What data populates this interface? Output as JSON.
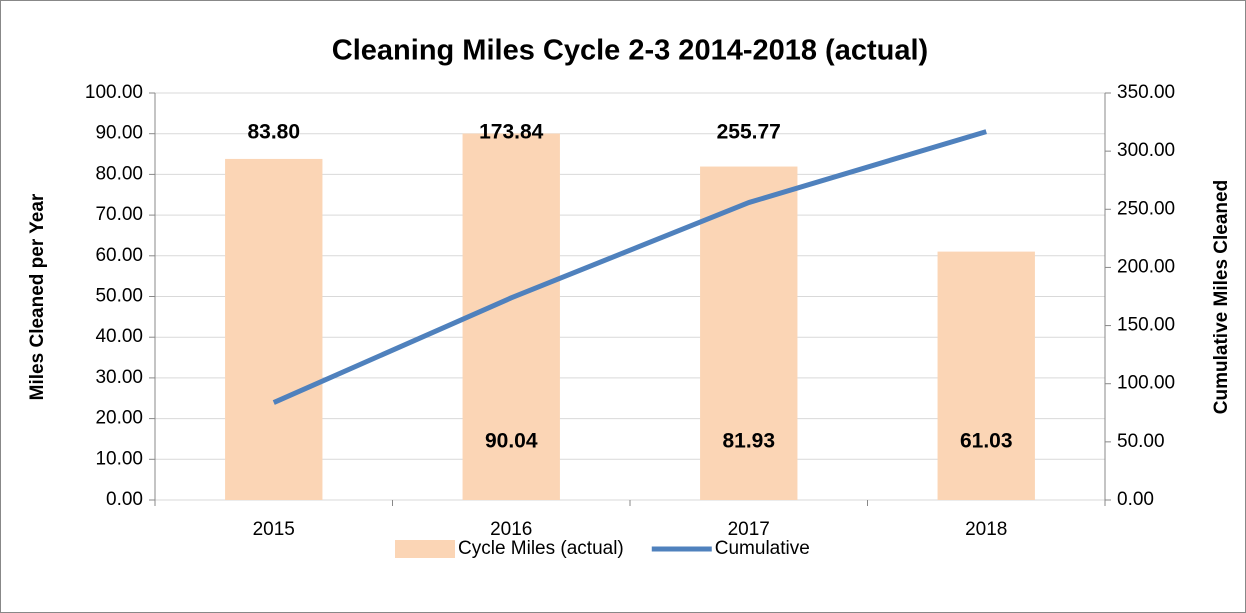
{
  "chart_data": {
    "type": "bar_line",
    "title": "Cleaning Miles Cycle 2-3 2014-2018 (actual)",
    "y_label": "Miles Cleaned per Year",
    "y2_label": "Cumulative Miles Cleaned",
    "categories": [
      "2015",
      "2016",
      "2017",
      "2018"
    ],
    "series": [
      {
        "name": "Cycle Miles (actual)",
        "type": "bar",
        "color": "#fbd5b5",
        "values": [
          83.8,
          90.04,
          81.93,
          61.03
        ],
        "value_labels": [
          null,
          "90.04",
          "81.93",
          "61.03"
        ]
      },
      {
        "name": "Cumulative",
        "type": "line",
        "axis": "y2",
        "color": "#4f81bd",
        "values": [
          83.8,
          173.84,
          255.77,
          316.8
        ],
        "value_labels": [
          "83.80",
          "173.84",
          "255.77",
          null
        ]
      }
    ],
    "ylim": [
      0,
      100
    ],
    "yticks": [
      {
        "value": 0,
        "label": "0.00"
      },
      {
        "value": 10,
        "label": "10.00"
      },
      {
        "value": 20,
        "label": "20.00"
      },
      {
        "value": 30,
        "label": "30.00"
      },
      {
        "value": 40,
        "label": "40.00"
      },
      {
        "value": 50,
        "label": "50.00"
      },
      {
        "value": 60,
        "label": "60.00"
      },
      {
        "value": 70,
        "label": "70.00"
      },
      {
        "value": 80,
        "label": "80.00"
      },
      {
        "value": 90,
        "label": "90.00"
      },
      {
        "value": 100,
        "label": "100.00"
      }
    ],
    "y2lim": [
      0,
      350
    ],
    "y2ticks": [
      {
        "value": 0,
        "label": "0.00"
      },
      {
        "value": 50,
        "label": "50.00"
      },
      {
        "value": 100,
        "label": "100.00"
      },
      {
        "value": 150,
        "label": "150.00"
      },
      {
        "value": 200,
        "label": "200.00"
      },
      {
        "value": 250,
        "label": "250.00"
      },
      {
        "value": 300,
        "label": "300.00"
      },
      {
        "value": 350,
        "label": "350.00"
      }
    ],
    "grid": true,
    "legend": "bottom"
  }
}
